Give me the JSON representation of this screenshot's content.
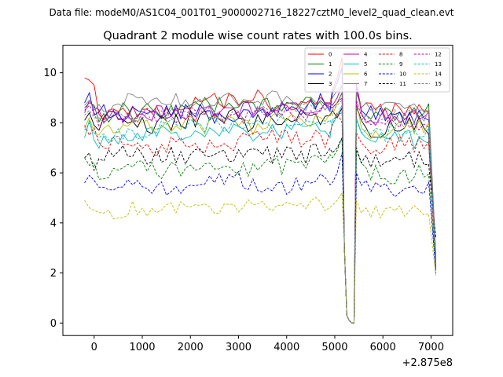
{
  "header": {
    "data_file_label": "Data file: modeM0/AS1C04_001T01_9000002716_18227cztM0_level2_quad_clean.evt"
  },
  "chart_data": {
    "type": "line",
    "title": "Quadrant 2 module wise count rates with 100.0s bins.",
    "xlabel": "",
    "ylabel": "",
    "x_offset_label": "+2.875e8",
    "xlim": [
      -650,
      7450
    ],
    "ylim": [
      -0.5,
      11.1
    ],
    "xticks": [
      0,
      1000,
      2000,
      3000,
      4000,
      5000,
      6000,
      7000
    ],
    "xtick_labels": [
      "0",
      "1000",
      "2000",
      "3000",
      "4000",
      "5000",
      "6000",
      "7000"
    ],
    "yticks": [
      0,
      2,
      4,
      6,
      8,
      10
    ],
    "ytick_labels": [
      "0",
      "2",
      "4",
      "6",
      "8",
      "10"
    ],
    "legend_placement": "top-right",
    "grid": false,
    "dip_x": [
      5200,
      5250,
      5300,
      5350,
      5400
    ],
    "dip_values": [
      3.0,
      0.3,
      0.1,
      0.0,
      0.0
    ],
    "series": [
      {
        "name": "0",
        "color": "#ff0000",
        "dash": "solid",
        "start": [
          9.8,
          9.7,
          9.5
        ],
        "pre": [
          9.3,
          9.8,
          10.6
        ],
        "post": [
          9.5,
          8.6,
          8.8
        ],
        "mid": 8.55,
        "jitter": 0.28,
        "seed": 11,
        "end": 2.2
      },
      {
        "name": "1",
        "color": "#008000",
        "dash": "solid",
        "start": [
          8.6,
          8.8,
          8.7
        ],
        "pre": [
          8.6,
          8.8,
          9.2
        ],
        "post": [
          8.6,
          8.1,
          8.3
        ],
        "mid": 8.5,
        "jitter": 0.3,
        "seed": 23,
        "end": 2.6
      },
      {
        "name": "2",
        "color": "#0000ff",
        "dash": "solid",
        "start": [
          8.8,
          9.2,
          8.3
        ],
        "pre": [
          9.2,
          9.6,
          10.2
        ],
        "post": [
          9.4,
          8.5,
          8.3
        ],
        "mid": 8.35,
        "jitter": 0.35,
        "seed": 37,
        "end": 2.4
      },
      {
        "name": "3",
        "color": "#000000",
        "dash": "solid",
        "start": [
          8.1,
          8.4,
          7.9
        ],
        "pre": [
          8.5,
          8.2,
          8.6
        ],
        "post": [
          8.7,
          8.1,
          7.8
        ],
        "mid": 7.95,
        "jitter": 0.35,
        "seed": 41,
        "end": 2.5
      },
      {
        "name": "4",
        "color": "#bf00bf",
        "dash": "solid",
        "start": [
          8.4,
          8.9,
          8.6
        ],
        "pre": [
          8.7,
          9.0,
          9.5
        ],
        "post": [
          9.6,
          8.4,
          8.0
        ],
        "mid": 8.4,
        "jitter": 0.32,
        "seed": 53,
        "end": 2.7
      },
      {
        "name": "5",
        "color": "#00bfbf",
        "dash": "solid",
        "start": [
          7.4,
          8.1,
          7.3
        ],
        "pre": [
          8.1,
          8.3,
          8.7
        ],
        "post": [
          8.2,
          7.6,
          7.4
        ],
        "mid": 7.45,
        "jitter": 0.3,
        "seed": 61,
        "end": 2.3
      },
      {
        "name": "6",
        "color": "#bfbf00",
        "dash": "solid",
        "start": [
          7.8,
          8.2,
          7.6
        ],
        "pre": [
          8.3,
          8.8,
          9.0
        ],
        "post": [
          8.9,
          7.8,
          7.6
        ],
        "mid": 7.8,
        "jitter": 0.35,
        "seed": 71,
        "end": 2.4
      },
      {
        "name": "7",
        "color": "#808080",
        "dash": "solid",
        "start": [
          8.7,
          8.9,
          8.5
        ],
        "pre": [
          9.0,
          9.3,
          9.5
        ],
        "post": [
          9.2,
          8.6,
          8.8
        ],
        "mid": 8.7,
        "jitter": 0.25,
        "seed": 83,
        "end": 2.6
      },
      {
        "name": "8",
        "color": "#ff0000",
        "dash": "dashed",
        "start": [
          7.9,
          7.5,
          7.8
        ],
        "pre": [
          7.9,
          8.4,
          8.0
        ],
        "post": [
          7.6,
          7.2,
          7.0
        ],
        "mid": 7.2,
        "jitter": 0.35,
        "seed": 97,
        "end": 2.1
      },
      {
        "name": "9",
        "color": "#008000",
        "dash": "dashed",
        "start": [
          6.6,
          6.3,
          6.4
        ],
        "pre": [
          6.6,
          6.9,
          7.4
        ],
        "post": [
          6.9,
          6.4,
          6.2
        ],
        "mid": 6.05,
        "jitter": 0.3,
        "seed": 101,
        "end": 2.2
      },
      {
        "name": "10",
        "color": "#0000ff",
        "dash": "dashed",
        "start": [
          5.6,
          5.9,
          5.7
        ],
        "pre": [
          5.6,
          6.0,
          6.8
        ],
        "post": [
          6.0,
          5.5,
          5.7
        ],
        "mid": 5.4,
        "jitter": 0.28,
        "seed": 113,
        "end": 2.0
      },
      {
        "name": "11",
        "color": "#000000",
        "dash": "dashed",
        "start": [
          6.6,
          6.8,
          6.1
        ],
        "pre": [
          6.8,
          7.0,
          7.4
        ],
        "post": [
          7.0,
          6.4,
          6.7
        ],
        "mid": 6.6,
        "jitter": 0.35,
        "seed": 127,
        "end": 3.4
      },
      {
        "name": "12",
        "color": "#bf00bf",
        "dash": "dashed",
        "start": [
          8.5,
          8.7,
          8.4
        ],
        "pre": [
          8.6,
          8.8,
          9.0
        ],
        "post": [
          8.9,
          8.3,
          8.1
        ],
        "mid": 8.2,
        "jitter": 0.3,
        "seed": 131,
        "end": 2.4
      },
      {
        "name": "13",
        "color": "#00bfbf",
        "dash": "dashed",
        "start": [
          7.7,
          8.0,
          7.6
        ],
        "pre": [
          7.9,
          8.3,
          8.4
        ],
        "post": [
          8.1,
          7.6,
          7.7
        ],
        "mid": 7.7,
        "jitter": 0.28,
        "seed": 139,
        "end": 2.3
      },
      {
        "name": "14",
        "color": "#bfbf00",
        "dash": "dashed",
        "start": [
          4.9,
          4.6,
          4.5
        ],
        "pre": [
          4.7,
          4.9,
          5.2
        ],
        "post": [
          4.9,
          4.4,
          4.6
        ],
        "mid": 4.55,
        "jitter": 0.22,
        "seed": 149,
        "end": 1.9
      },
      {
        "name": "15",
        "color": "#808080",
        "dash": "dashed",
        "start": [
          8.3,
          8.5,
          8.2
        ],
        "pre": [
          8.5,
          8.7,
          8.9
        ],
        "post": [
          8.6,
          8.1,
          8.3
        ],
        "mid": 8.3,
        "jitter": 0.25,
        "seed": 157,
        "end": 2.5
      }
    ]
  }
}
